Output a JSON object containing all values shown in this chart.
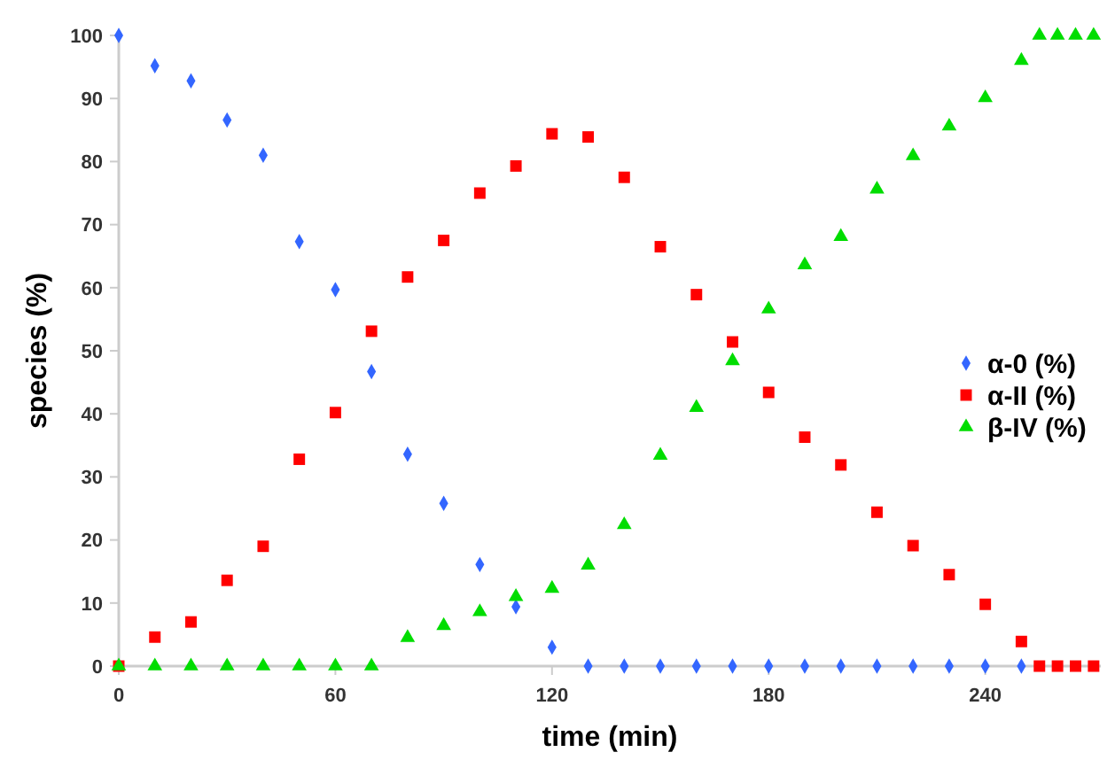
{
  "chart_data": {
    "type": "scatter",
    "xlabel": "time (min)",
    "ylabel": "species (%)",
    "x": [
      0,
      10,
      20,
      30,
      40,
      50,
      60,
      70,
      80,
      90,
      100,
      110,
      120,
      130,
      140,
      150,
      160,
      170,
      180,
      190,
      200,
      210,
      220,
      230,
      240,
      250,
      255,
      260,
      265,
      270
    ],
    "series": [
      {
        "name": "α-0 (%)",
        "color": "#3366ff",
        "marker": "diamond",
        "x": [
          0,
          10,
          20,
          30,
          40,
          50,
          60,
          70,
          80,
          90,
          100,
          110,
          120,
          130,
          140,
          150,
          160,
          170,
          180,
          190,
          200,
          210,
          220,
          230,
          240,
          250
        ],
        "values": [
          100,
          95.2,
          92.8,
          86.6,
          81,
          67.3,
          59.7,
          46.7,
          33.6,
          25.8,
          16.1,
          9.4,
          3.0,
          0,
          0,
          0,
          0,
          0,
          0,
          0,
          0,
          0,
          0,
          0,
          0,
          0
        ]
      },
      {
        "name": "α-II (%)",
        "color": "#ff0000",
        "marker": "square",
        "values": [
          0,
          4.6,
          7,
          13.6,
          19,
          32.8,
          40.2,
          53.1,
          61.7,
          67.5,
          75,
          79.3,
          84.4,
          83.9,
          77.5,
          66.5,
          58.9,
          51.4,
          43.4,
          36.3,
          31.9,
          24.4,
          19.1,
          14.5,
          9.8,
          3.9,
          0,
          0,
          0,
          0
        ]
      },
      {
        "name": "β-IV (%)",
        "color": "#00dd00",
        "marker": "triangle",
        "values": [
          0,
          0,
          0,
          0,
          0,
          0,
          0,
          0,
          4.5,
          6.4,
          8.6,
          11,
          12.3,
          16,
          22.4,
          33.4,
          41,
          48.4,
          56.6,
          63.6,
          68.1,
          75.6,
          80.9,
          85.6,
          90.1,
          96,
          100,
          100,
          100,
          100
        ]
      }
    ],
    "xlim": [
      0,
      272
    ],
    "xticks": [
      0,
      60,
      120,
      180,
      240
    ],
    "ylim": [
      0,
      100
    ],
    "yticks": [
      0,
      10,
      20,
      30,
      40,
      50,
      60,
      70,
      80,
      90,
      100
    ],
    "grid": false,
    "legend": "right"
  }
}
